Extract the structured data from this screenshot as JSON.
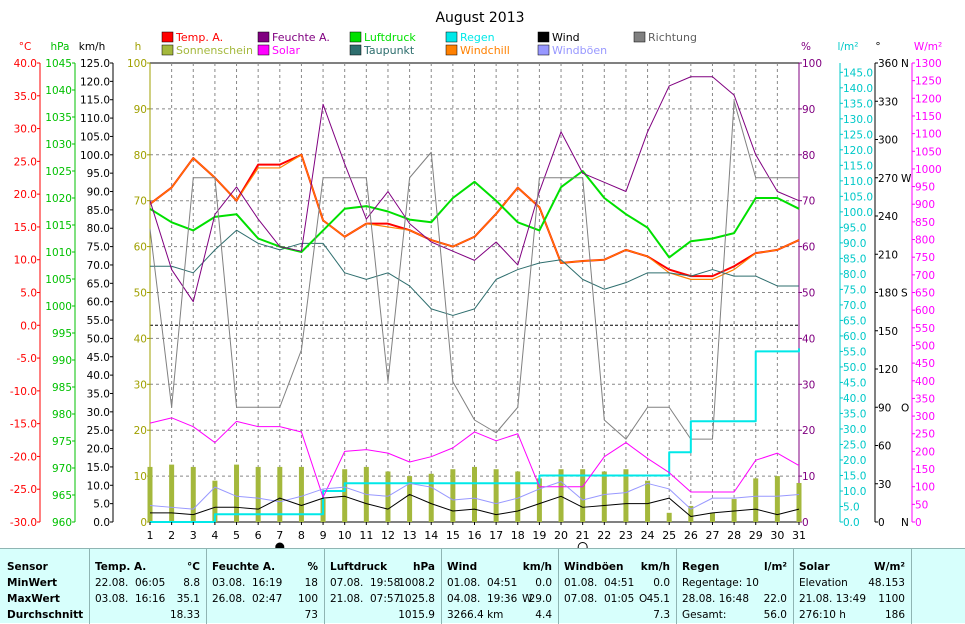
{
  "chart_data": {
    "type": "line",
    "title": "August 2013",
    "x": [
      1,
      2,
      3,
      4,
      5,
      6,
      7,
      8,
      9,
      10,
      11,
      12,
      13,
      14,
      15,
      16,
      17,
      18,
      19,
      20,
      21,
      22,
      23,
      24,
      25,
      26,
      27,
      28,
      29,
      30,
      31
    ],
    "axes": {
      "x": {
        "range": [
          1,
          31
        ]
      },
      "temp": {
        "unit": "°C",
        "range": [
          -30,
          40
        ],
        "step": 5,
        "color": "#ff0000"
      },
      "press": {
        "unit": "hPa",
        "range": [
          960,
          1045
        ],
        "step": 5,
        "color": "#00c000"
      },
      "wind": {
        "unit": "km/h",
        "range": [
          0,
          125
        ],
        "step": 5,
        "color": "#000000"
      },
      "sun": {
        "unit": "h",
        "range": [
          0,
          100
        ],
        "step": 10,
        "color": "#a0a000"
      },
      "hum": {
        "unit": "%",
        "range": [
          0,
          100
        ],
        "step": 10,
        "color": "#800080"
      },
      "rain": {
        "unit": "l/m²",
        "range": [
          0,
          148
        ],
        "step": 5,
        "color": "#00c8c8"
      },
      "dir": {
        "unit": "°",
        "range": [
          0,
          360
        ],
        "step": 30,
        "color": "#000000",
        "compass": {
          "0": "N",
          "90": "O",
          "180": "S",
          "270": "W",
          "360": "N"
        }
      },
      "solar": {
        "unit": "W/m²",
        "range": [
          0,
          1300
        ],
        "step": 50,
        "color": "#ff00ff"
      }
    },
    "grid": true,
    "legend_position": "top",
    "legend": [
      {
        "label": "Temp. A.",
        "color": "#ff0000"
      },
      {
        "label": "Feuchte A.",
        "color": "#800080"
      },
      {
        "label": "Luftdruck",
        "color": "#00e000"
      },
      {
        "label": "Regen",
        "color": "#00e8e8"
      },
      {
        "label": "Wind",
        "color": "#000000"
      },
      {
        "label": "Richtung",
        "color": "#808080"
      },
      {
        "label": "Sonnenschein",
        "color": "#a4b83c"
      },
      {
        "label": "Solar",
        "color": "#ff00ff"
      },
      {
        "label": "Taupunkt",
        "color": "#2e6e6e"
      },
      {
        "label": "Windchill",
        "color": "#ff8000"
      },
      {
        "label": "Windböen",
        "color": "#9898ff"
      }
    ],
    "series": [
      {
        "name": "Temp. A.",
        "axis": "temp",
        "color": "#ff0000",
        "width": 2,
        "values": [
          18.5,
          21.0,
          25.5,
          22.5,
          19.0,
          24.5,
          24.5,
          26.0,
          16.0,
          13.5,
          15.5,
          15.5,
          14.5,
          13.0,
          12.0,
          13.5,
          17.0,
          21.0,
          18.0,
          9.5,
          9.8,
          10.0,
          11.5,
          10.5,
          8.5,
          7.5,
          7.5,
          9.0,
          11.0,
          11.5,
          13.0
        ]
      },
      {
        "name": "Windchill",
        "axis": "temp",
        "color": "#ff8000",
        "width": 1.2,
        "values": [
          18.5,
          21.0,
          25.5,
          22.5,
          19.0,
          24.0,
          24.0,
          26.0,
          16.0,
          13.5,
          15.5,
          15.0,
          14.5,
          13.0,
          12.0,
          13.5,
          17.0,
          21.0,
          18.0,
          9.5,
          9.8,
          10.0,
          11.5,
          10.5,
          8.0,
          7.0,
          7.0,
          8.5,
          11.0,
          11.5,
          13.0
        ]
      },
      {
        "name": "Taupunkt",
        "axis": "temp",
        "color": "#2e6e6e",
        "width": 1,
        "values": [
          9.0,
          9.0,
          8.0,
          11.5,
          14.5,
          12.5,
          11.5,
          12.5,
          12.5,
          8.0,
          7.0,
          8.0,
          6.0,
          2.5,
          1.5,
          2.5,
          7.0,
          8.5,
          9.5,
          10.0,
          7.0,
          5.5,
          6.5,
          8.0,
          8.0,
          7.5,
          8.5,
          7.5,
          7.5,
          6.0,
          6.0
        ]
      },
      {
        "name": "Luftdruck",
        "axis": "press",
        "color": "#00e000",
        "width": 2,
        "values": [
          1018.0,
          1015.5,
          1014.0,
          1016.5,
          1017.0,
          1012.5,
          1011.0,
          1010.0,
          1014.0,
          1018.0,
          1018.5,
          1017.5,
          1016.0,
          1015.5,
          1020.0,
          1023.0,
          1019.5,
          1015.5,
          1014.0,
          1022.0,
          1025.0,
          1020.0,
          1017.0,
          1014.5,
          1009.0,
          1012.0,
          1012.5,
          1013.5,
          1020.0,
          1020.0,
          1018.0
        ]
      },
      {
        "name": "Feuchte A.",
        "axis": "hum",
        "color": "#800080",
        "width": 1,
        "values": [
          70,
          55,
          48,
          67,
          73,
          66,
          60,
          59,
          91,
          78,
          66,
          72,
          65,
          61,
          59,
          57,
          61,
          56,
          72,
          85,
          76,
          74,
          72,
          85,
          95,
          97,
          97,
          93,
          80,
          72,
          70
        ]
      },
      {
        "name": "Richtung",
        "axis": "dir",
        "color": "#808080",
        "width": 1,
        "values": [
          230,
          90,
          270,
          270,
          90,
          90,
          90,
          135,
          270,
          270,
          270,
          110,
          270,
          290,
          110,
          80,
          70,
          90,
          270,
          270,
          270,
          80,
          65,
          90,
          90,
          65,
          65,
          330,
          270,
          270,
          270
        ]
      },
      {
        "name": "Regen",
        "axis": "rain",
        "color": "#00e8e8",
        "width": 2,
        "step": true,
        "values": [
          0.0,
          0.0,
          0.0,
          2.5,
          2.5,
          2.5,
          2.5,
          2.5,
          10.0,
          12.5,
          12.5,
          12.5,
          12.5,
          12.5,
          12.5,
          12.5,
          12.5,
          12.5,
          15.0,
          15.0,
          15.0,
          15.0,
          15.0,
          15.0,
          22.5,
          32.5,
          32.5,
          32.5,
          55.0,
          55.0,
          56.0
        ]
      },
      {
        "name": "Solar",
        "axis": "solar",
        "color": "#ff00ff",
        "width": 1,
        "values": [
          280,
          295,
          270,
          225,
          285,
          270,
          270,
          255,
          70,
          200,
          205,
          195,
          170,
          185,
          210,
          255,
          230,
          250,
          100,
          100,
          100,
          185,
          225,
          180,
          140,
          85,
          85,
          85,
          175,
          195,
          160
        ]
      },
      {
        "name": "Windböen",
        "axis": "wind",
        "color": "#9898ff",
        "width": 1,
        "values": [
          4.5,
          4.0,
          3.5,
          9.5,
          7.0,
          6.5,
          5.5,
          7.0,
          9.0,
          9.5,
          7.5,
          7.0,
          10.5,
          9.5,
          6.0,
          6.5,
          5.0,
          6.5,
          9.0,
          11.0,
          6.0,
          7.5,
          8.0,
          10.5,
          9.0,
          3.5,
          6.5,
          6.5,
          7.0,
          7.0,
          7.5
        ]
      },
      {
        "name": "Wind",
        "axis": "wind",
        "color": "#000000",
        "width": 1,
        "values": [
          2.5,
          2.5,
          2.0,
          4.0,
          4.0,
          3.5,
          6.5,
          4.5,
          6.5,
          7.0,
          5.0,
          3.5,
          7.5,
          5.0,
          3.0,
          3.5,
          2.0,
          3.0,
          5.0,
          7.0,
          4.0,
          4.5,
          5.0,
          5.0,
          6.5,
          1.5,
          2.5,
          3.0,
          3.5,
          2.0,
          3.5
        ]
      }
    ],
    "bars": {
      "name": "Sonnenschein",
      "axis": "sun",
      "color": "#a4b83c",
      "values": [
        12,
        12.5,
        12,
        9,
        12.5,
        12,
        12,
        12,
        5,
        11.5,
        12,
        11,
        10,
        10.5,
        11.5,
        12,
        11.5,
        11,
        9.5,
        11.5,
        11.5,
        11,
        11.5,
        9,
        2,
        3.5,
        2,
        5,
        9.5,
        10,
        8.5
      ]
    },
    "moon_phases": [
      {
        "day": 7,
        "phase": "new"
      },
      {
        "day": 21,
        "phase": "full"
      }
    ]
  },
  "stats": {
    "sensor": {
      "header": "Sensor",
      "rows": [
        "MinWert",
        "MaxWert",
        "Durchschnitt"
      ]
    },
    "temp": {
      "header": "Temp. A.",
      "unit": "°C",
      "rows": [
        {
          "date": "22.08.",
          "time": "06:05",
          "value": "8.8"
        },
        {
          "date": "03.08.",
          "time": "16:16",
          "value": "35.1"
        },
        {
          "date": "",
          "time": "",
          "value": "18.33"
        }
      ]
    },
    "hum": {
      "header": "Feuchte A.",
      "unit": "%",
      "rows": [
        {
          "date": "03.08.",
          "time": "16:19",
          "value": "18"
        },
        {
          "date": "26.08.",
          "time": "02:47",
          "value": "100"
        },
        {
          "date": "",
          "time": "",
          "value": "73"
        }
      ]
    },
    "press": {
      "header": "Luftdruck",
      "unit": "hPa",
      "rows": [
        {
          "date": "07.08.",
          "time": "19:58",
          "value": "1008.2"
        },
        {
          "date": "21.08.",
          "time": "07:57",
          "value": "1025.8"
        },
        {
          "date": "",
          "time": "",
          "value": "1015.9"
        }
      ]
    },
    "wind": {
      "header": "Wind",
      "unit": "km/h",
      "rows": [
        {
          "date": "01.08.",
          "time": "04:51",
          "dir": "",
          "value": "0.0"
        },
        {
          "date": "04.08.",
          "time": "19:36",
          "dir": "W",
          "value": "29.0"
        },
        {
          "date": "3266.4 km",
          "time": "",
          "dir": "",
          "value": "4.4"
        }
      ]
    },
    "gust": {
      "header": "Windböen",
      "unit": "km/h",
      "rows": [
        {
          "date": "01.08.",
          "time": "04:51",
          "dir": "",
          "value": "0.0"
        },
        {
          "date": "07.08.",
          "time": "01:05",
          "dir": "O",
          "value": "45.1"
        },
        {
          "date": "",
          "time": "",
          "dir": "",
          "value": "7.3"
        }
      ]
    },
    "rain": {
      "header": "Regen",
      "unit": "l/m²",
      "rows": [
        {
          "label": "Regentage: 10",
          "value": ""
        },
        {
          "label": "28.08.  16:48",
          "value": "22.0"
        },
        {
          "label": "Gesamt:",
          "value": "56.0"
        }
      ]
    },
    "solar": {
      "header": "Solar",
      "unit": "W/m²",
      "rows": [
        {
          "label": "Elevation",
          "value": "48.153"
        },
        {
          "label": "21.08.  13:49",
          "value": "1100"
        },
        {
          "label": "276:10 h",
          "value": "186"
        }
      ]
    }
  }
}
